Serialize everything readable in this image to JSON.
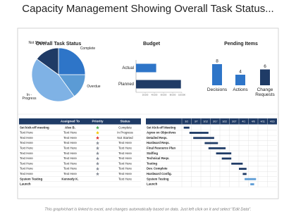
{
  "title": "Capacity Management Showing Overall Task Status...",
  "chart_data": [
    {
      "type": "pie",
      "title": "Overall Task Status",
      "categories": [
        "Complete",
        "Overdue",
        "In -Progress",
        "Not Started"
      ],
      "values": [
        25,
        15,
        45,
        15
      ],
      "colors": [
        "#2e75c8",
        "#5b9bd5",
        "#7fb2e5",
        "#1f3b66"
      ]
    },
    {
      "type": "hbar",
      "title": "Budget",
      "categories": [
        "Actual",
        "Planned"
      ],
      "values": [
        44000,
        98000
      ],
      "colors": [
        "#2e75c8",
        "#1f3b66"
      ],
      "xlim": [
        0,
        100000
      ],
      "xticks": [
        {
          "value": 20000,
          "label": "20,000"
        },
        {
          "value": 40000,
          "label": "40,000"
        },
        {
          "value": 60000,
          "label": "60,000"
        },
        {
          "value": 80000,
          "label": "80,000"
        },
        {
          "value": 100000,
          "label": "100,000"
        }
      ]
    },
    {
      "type": "bar",
      "title": "Pending Items",
      "categories": [
        "Decisions",
        "Actions",
        "Change Requests"
      ],
      "values": [
        8,
        4,
        6
      ],
      "colors": [
        "#2e75c8",
        "#2e75c8",
        "#1f3b66"
      ]
    }
  ],
  "task_table": {
    "header": [
      null,
      "Assigned To",
      "Priority",
      "Status"
    ],
    "rows": [
      {
        "task": "Set kick-off meeting",
        "assigned": "Alex B.",
        "priority": "#4caf50",
        "status": "Complete"
      },
      {
        "task": "Text Here",
        "assigned": "Text Here",
        "priority": "#f2c500",
        "status": "In Progress"
      },
      {
        "task": "Text Here",
        "assigned": "Text Here",
        "priority": "#e03030",
        "status": "Not Started"
      },
      {
        "task": "Text Here",
        "assigned": "Text Here",
        "priority": "#8a8f99",
        "status": "Text Here"
      },
      {
        "task": "Text Here",
        "assigned": "Text Here",
        "priority": "#8a8f99",
        "status": "Text Here"
      },
      {
        "task": "Text Here",
        "assigned": "Text Here",
        "priority": "#8a8f99",
        "status": "Text Here"
      },
      {
        "task": "Text Here",
        "assigned": "Text Here",
        "priority": "#8a8f99",
        "status": "Text Here"
      },
      {
        "task": "Text Here",
        "assigned": "Text Here",
        "priority": "#8a8f99",
        "status": "Text Here"
      },
      {
        "task": "Text Here",
        "assigned": "Text Here",
        "priority": "#8a8f99",
        "status": "Text Here"
      },
      {
        "task": "Text Here",
        "assigned": "Text Here",
        "priority": "#8a8f99",
        "status": "Text Here"
      },
      {
        "task": "System Testing",
        "assigned": "Kennedy K.",
        "priority": null,
        "status": "Text Here"
      },
      {
        "task": "Launch",
        "assigned": null,
        "priority": null,
        "status": null
      }
    ]
  },
  "gantt": {
    "dates": [
      "3/2",
      "3/7",
      "3/12",
      "3/17",
      "3/22",
      "3/27",
      "4/1",
      "4/6",
      "4/11",
      "4/16"
    ],
    "tasks": [
      {
        "name": "Set Kick-off Meeting",
        "start": "3/3",
        "end": "3/6",
        "color": "#1f3b66"
      },
      {
        "name": "Agree on Objectives",
        "start": "3/6",
        "end": "3/16",
        "color": "#1f3b66"
      },
      {
        "name": "Detailed Reqs.",
        "start": "3/8",
        "end": "3/19",
        "color": "#1f3b66"
      },
      {
        "name": "Hardward Reqs.",
        "start": "3/14",
        "end": "3/21",
        "color": "#1f3b66"
      },
      {
        "name": "Final Resource Plan",
        "start": "3/16",
        "end": "3/25",
        "color": "#1f3b66"
      },
      {
        "name": "Staffing",
        "start": "3/20",
        "end": "3/28",
        "color": "#1f3b66"
      },
      {
        "name": "Technical Reqs.",
        "start": "3/23",
        "end": "3/28",
        "color": "#1f3b66"
      },
      {
        "name": "Testing",
        "start": "3/28",
        "end": "4/3",
        "color": "#1f3b66"
      },
      {
        "name": "Dev. Complete",
        "start": "4/1",
        "end": "4/5",
        "color": "#1f3b66"
      },
      {
        "name": "Hardward Config.",
        "start": "4/3",
        "end": "4/5",
        "color": "#1f3b66"
      },
      {
        "name": "System Testing",
        "start": "4/4",
        "end": "4/10",
        "color": "#5b9bd5"
      },
      {
        "name": "Launch",
        "start": "4/7",
        "end": "4/9",
        "color": "#5b9bd5"
      }
    ]
  },
  "footer": "This graph/chart is linked to excel, and changes automatically based on data. Just left click on it and select \"Edit Data\"."
}
